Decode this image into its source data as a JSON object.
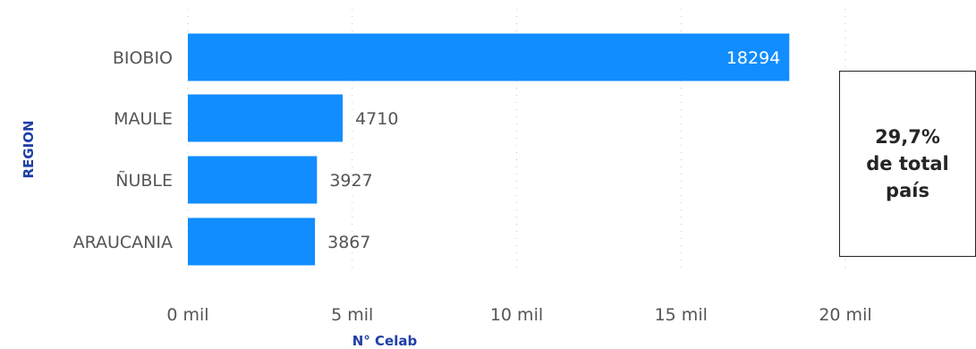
{
  "chart_data": {
    "type": "bar",
    "orientation": "horizontal",
    "categories": [
      "BIOBIO",
      "MAULE",
      "ÑUBLE",
      "ARAUCANIA"
    ],
    "values": [
      18294,
      4710,
      3927,
      3867
    ],
    "data_labels": [
      "18294",
      "4710",
      "3927",
      "3867"
    ],
    "xlabel": "N° Celab",
    "ylabel": "REGION",
    "xlim": [
      0,
      20000
    ],
    "x_ticks": [
      0,
      5000,
      10000,
      15000,
      20000
    ],
    "x_tick_labels": [
      "0 mil",
      "5 mil",
      "10 mil",
      "15 mil",
      "20 mil"
    ],
    "grid": true,
    "legend": "none"
  },
  "colors": {
    "bar": "#118dff",
    "axis_title": "#1f3fa6",
    "text": "#555555",
    "data_label_inside": "#ffffff"
  },
  "kpi": {
    "line1": "29,7%",
    "line2": "de total",
    "line3": "país"
  }
}
